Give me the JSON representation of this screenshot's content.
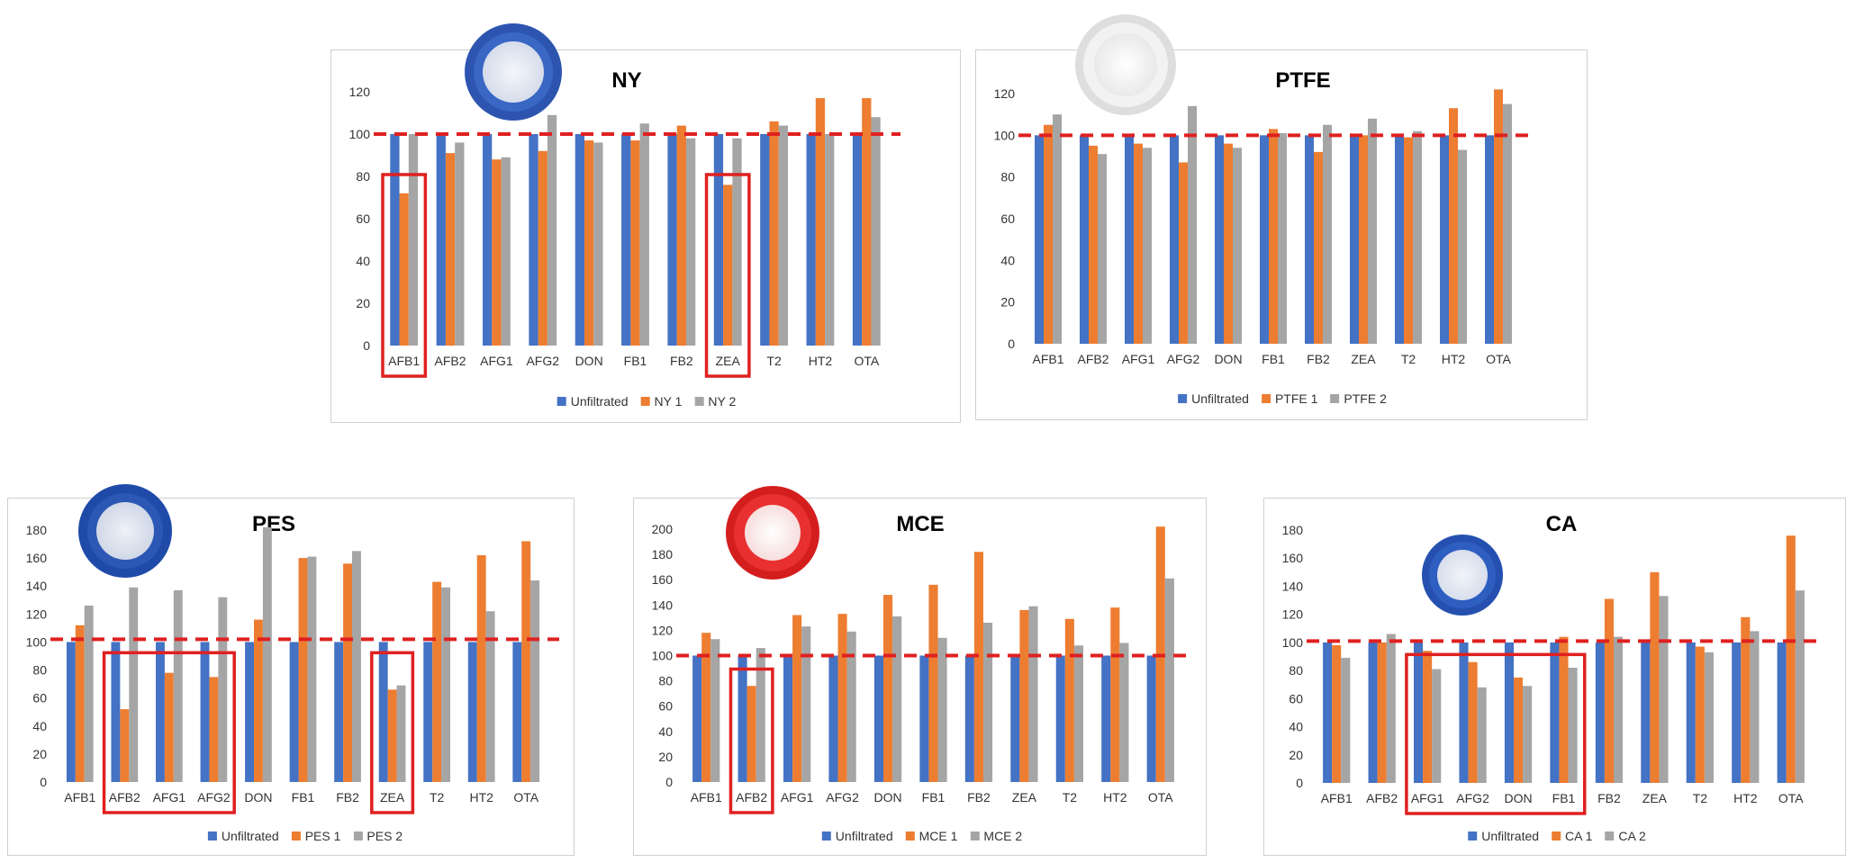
{
  "colors": {
    "unfiltrated": "#4472C4",
    "filter1": "#ED7D31",
    "filter2": "#A5A5A5",
    "reference_line": "#E02020",
    "highlight_box": "#E02020"
  },
  "chart_data": [
    {
      "type": "bar",
      "title": "NY",
      "categories": [
        "AFB1",
        "AFB2",
        "AFG1",
        "AFG2",
        "DON",
        "FB1",
        "FB2",
        "ZEA",
        "T2",
        "HT2",
        "OTA"
      ],
      "series": [
        {
          "name": "Unfiltrated",
          "values": [
            100,
            100,
            100,
            100,
            100,
            100,
            100,
            100,
            100,
            100,
            100
          ]
        },
        {
          "name": "NY 1",
          "values": [
            72,
            91,
            88,
            92,
            97,
            97,
            104,
            76,
            106,
            117,
            117
          ]
        },
        {
          "name": "NY 2",
          "values": [
            100,
            96,
            89,
            109,
            96,
            105,
            98,
            98,
            104,
            100,
            108
          ]
        }
      ],
      "ylim": [
        0,
        120
      ],
      "yticks": [
        0,
        20,
        40,
        60,
        80,
        100,
        120
      ],
      "reference_line": 100,
      "highlighted": [
        "AFB1",
        "ZEA"
      ],
      "legend": "bottom",
      "icon": "nylon-syringe-filter-icon"
    },
    {
      "type": "bar",
      "title": "PTFE",
      "categories": [
        "AFB1",
        "AFB2",
        "AFG1",
        "AFG2",
        "DON",
        "FB1",
        "FB2",
        "ZEA",
        "T2",
        "HT2",
        "OTA"
      ],
      "series": [
        {
          "name": "Unfiltrated",
          "values": [
            100,
            100,
            100,
            100,
            100,
            100,
            100,
            100,
            100,
            100,
            100
          ]
        },
        {
          "name": "PTFE 1",
          "values": [
            105,
            95,
            96,
            87,
            96,
            103,
            92,
            100,
            99,
            113,
            122
          ]
        },
        {
          "name": "PTFE 2",
          "values": [
            110,
            91,
            94,
            114,
            94,
            101,
            105,
            108,
            102,
            93,
            115
          ]
        }
      ],
      "ylim": [
        0,
        120
      ],
      "yticks": [
        0,
        20,
        40,
        60,
        80,
        100,
        120
      ],
      "reference_line": 100,
      "highlighted": [],
      "legend": "bottom",
      "icon": "ptfe-syringe-filter-icon"
    },
    {
      "type": "bar",
      "title": "PES",
      "categories": [
        "AFB1",
        "AFB2",
        "AFG1",
        "AFG2",
        "DON",
        "FB1",
        "FB2",
        "ZEA",
        "T2",
        "HT2",
        "OTA"
      ],
      "series": [
        {
          "name": "Unfiltrated",
          "values": [
            100,
            100,
            100,
            100,
            100,
            100,
            100,
            100,
            100,
            100,
            100
          ]
        },
        {
          "name": "PES 1",
          "values": [
            112,
            52,
            78,
            75,
            116,
            160,
            156,
            66,
            143,
            162,
            172
          ]
        },
        {
          "name": "PES 2",
          "values": [
            126,
            139,
            137,
            132,
            182,
            161,
            165,
            69,
            139,
            122,
            144
          ]
        }
      ],
      "ylim": [
        0,
        180
      ],
      "yticks": [
        0,
        20,
        40,
        60,
        80,
        100,
        120,
        140,
        160,
        180
      ],
      "reference_line": 102,
      "highlighted": [
        "AFB2",
        "AFG1",
        "AFG2",
        "ZEA"
      ],
      "legend": "bottom",
      "icon": "pes-syringe-filter-icon"
    },
    {
      "type": "bar",
      "title": "MCE",
      "categories": [
        "AFB1",
        "AFB2",
        "AFG1",
        "AFG2",
        "DON",
        "FB1",
        "FB2",
        "ZEA",
        "T2",
        "HT2",
        "OTA"
      ],
      "series": [
        {
          "name": "Unfiltrated",
          "values": [
            100,
            100,
            100,
            100,
            100,
            100,
            100,
            100,
            100,
            100,
            100
          ]
        },
        {
          "name": "MCE 1",
          "values": [
            118,
            76,
            132,
            133,
            148,
            156,
            182,
            136,
            129,
            138,
            202
          ]
        },
        {
          "name": "MCE 2",
          "values": [
            113,
            106,
            123,
            119,
            131,
            114,
            126,
            139,
            108,
            110,
            161
          ]
        }
      ],
      "ylim": [
        0,
        200
      ],
      "yticks": [
        0,
        20,
        40,
        60,
        80,
        100,
        120,
        140,
        160,
        180,
        200
      ],
      "reference_line": 100,
      "highlighted": [
        "AFB2"
      ],
      "legend": "bottom",
      "icon": "mce-syringe-filter-icon"
    },
    {
      "type": "bar",
      "title": "CA",
      "categories": [
        "AFB1",
        "AFB2",
        "AFG1",
        "AFG2",
        "DON",
        "FB1",
        "FB2",
        "ZEA",
        "T2",
        "HT2",
        "OTA"
      ],
      "series": [
        {
          "name": "Unfiltrated",
          "values": [
            100,
            100,
            100,
            100,
            100,
            100,
            100,
            100,
            100,
            100,
            100
          ]
        },
        {
          "name": "CA 1",
          "values": [
            98,
            100,
            94,
            86,
            75,
            104,
            131,
            150,
            97,
            118,
            176
          ]
        },
        {
          "name": "CA 2",
          "values": [
            89,
            106,
            81,
            68,
            69,
            82,
            104,
            133,
            93,
            108,
            137
          ]
        }
      ],
      "ylim": [
        0,
        180
      ],
      "yticks": [
        0,
        20,
        40,
        60,
        80,
        100,
        120,
        140,
        160,
        180
      ],
      "reference_line": 101,
      "highlighted": [
        "AFG1",
        "AFG2",
        "DON",
        "FB1"
      ],
      "legend": "bottom",
      "icon": "ca-syringe-filter-icon"
    }
  ]
}
